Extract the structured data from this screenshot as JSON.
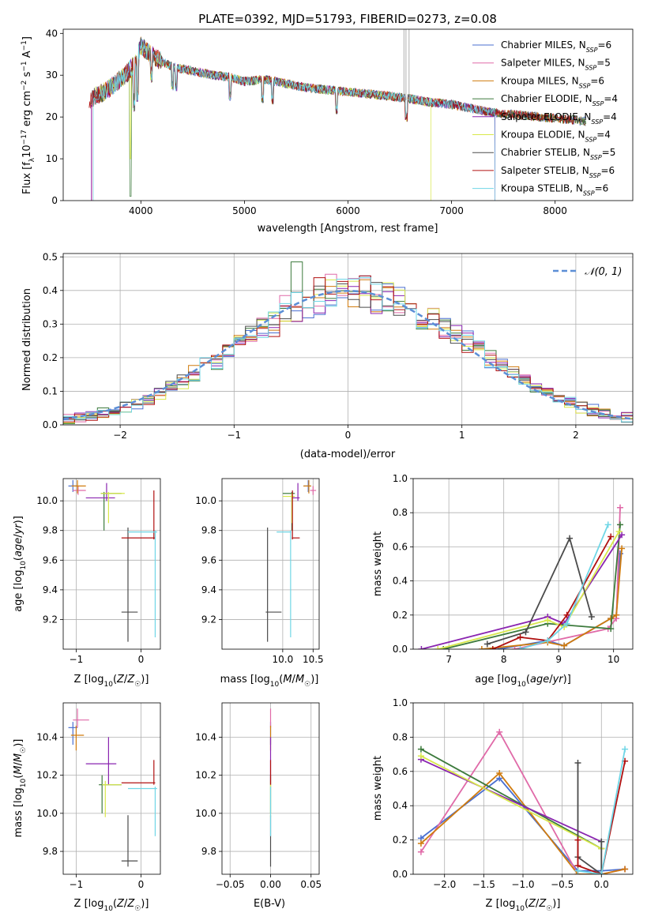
{
  "figure": {
    "title": "PLATE=0392, MJD=51793, FIBERID=0273, z=0.08",
    "colors": [
      "#4a6fd0",
      "#e06aa8",
      "#d07b0e",
      "#3c7a3c",
      "#8a25b0",
      "#d8e84a",
      "#4b4b4b",
      "#b01010",
      "#6fd6e6"
    ],
    "model_names": [
      "Chabrier MILES",
      "Salpeter MILES",
      "Kroupa MILES",
      "Chabrier ELODIE",
      "Salpeter ELODIE",
      "Kroupa ELODIE",
      "Chabrier STELIB",
      "Salpeter STELIB",
      "Kroupa STELIB"
    ],
    "nssp": [
      6,
      5,
      6,
      4,
      4,
      4,
      5,
      6,
      6
    ]
  },
  "chart_data": [
    {
      "id": "spectrum",
      "type": "line",
      "xlabel": "wavelength [Angstrom, rest frame]",
      "ylabel_parts": [
        "Flux [f",
        "λ",
        "10",
        "−17",
        " erg cm",
        "−2",
        " s",
        "−1",
        " A",
        "−1",
        "]"
      ],
      "xlim": [
        3250,
        8750
      ],
      "ylim": [
        0,
        41
      ],
      "xticks": [
        4000,
        5000,
        6000,
        7000,
        8000
      ],
      "yticks": [
        0,
        10,
        20,
        30,
        40
      ],
      "continuum": {
        "x": [
          3500,
          3550,
          3650,
          3750,
          3850,
          3950,
          4000,
          4050,
          4150,
          4300,
          4500,
          4700,
          4860,
          5000,
          5200,
          5400,
          5600,
          5800,
          6000,
          6200,
          6400,
          6560,
          6800,
          7000,
          7200,
          7400,
          7420
        ],
        "y": [
          23,
          25,
          26,
          28,
          30,
          33,
          37,
          36,
          34,
          32,
          31,
          30,
          29.5,
          28.5,
          29,
          28,
          27,
          26.5,
          26,
          25.5,
          25,
          24.5,
          23.5,
          23,
          22,
          21,
          21
        ]
      },
      "legend_labels": [
        "Chabrier MILES, N",
        "Salpeter MILES, N",
        "Kroupa MILES, N",
        "Chabrier ELODIE, N",
        "Salpeter ELODIE, N",
        "Kroupa ELODIE, N",
        "Chabrier STELIB, N",
        "Salpeter STELIB, N",
        "Kroupa STELIB, N"
      ],
      "legend_sub": "SSP",
      "legend_location": "upper-right",
      "grid": false
    },
    {
      "id": "residuals",
      "type": "step-histogram",
      "xlabel": "(data-model)/error",
      "ylabel": "Normed distribution",
      "xlim": [
        -2.5,
        2.5
      ],
      "ylim": [
        0,
        0.51
      ],
      "xticks": [
        -2,
        -1,
        0,
        1,
        2
      ],
      "yticks": [
        0.0,
        0.1,
        0.2,
        0.3,
        0.4,
        0.5
      ],
      "bin_width": 0.1,
      "bin_start": -2.5,
      "gaussian_label": "𝒩(0, 1)",
      "gaussian_color": "#5b8ed6",
      "legend_location": "upper-right",
      "grid": true
    },
    {
      "id": "age-vs-Z",
      "type": "errorbar",
      "xlabel": "Z [log10(Z/Z☉)]",
      "ylabel": "age  [log10(age/yr)]",
      "xlim": [
        -1.2,
        0.3
      ],
      "ylim": [
        9.0,
        10.15
      ],
      "xticks": [
        -1,
        0
      ],
      "yticks": [
        9.2,
        9.4,
        9.6,
        9.8,
        10.0
      ],
      "points": [
        {
          "x": -1.05,
          "xlo": -1.12,
          "xhi": -0.98,
          "y": 10.1,
          "ylo": 10.06,
          "yhi": 10.14
        },
        {
          "x": -0.97,
          "xlo": -1.05,
          "xhi": -0.85,
          "y": 10.07,
          "ylo": 10.04,
          "yhi": 10.1
        },
        {
          "x": -0.98,
          "xlo": -1.07,
          "xhi": -0.85,
          "y": 10.1,
          "ylo": 10.05,
          "yhi": 10.14
        },
        {
          "x": -0.57,
          "xlo": -0.62,
          "xhi": -0.3,
          "y": 10.05,
          "ylo": 9.8,
          "yhi": 10.06
        },
        {
          "x": -0.53,
          "xlo": -0.85,
          "xhi": -0.4,
          "y": 10.02,
          "ylo": 10.0,
          "yhi": 10.12
        },
        {
          "x": -0.5,
          "xlo": -0.62,
          "xhi": -0.25,
          "y": 10.05,
          "ylo": 9.85,
          "yhi": 10.06
        },
        {
          "x": -0.2,
          "xlo": -0.3,
          "xhi": -0.05,
          "y": 9.25,
          "ylo": 9.05,
          "yhi": 9.82
        },
        {
          "x": 0.2,
          "xlo": -0.3,
          "xhi": 0.22,
          "y": 9.75,
          "ylo": 9.74,
          "yhi": 10.07
        },
        {
          "x": 0.22,
          "xlo": -0.2,
          "xhi": 0.25,
          "y": 9.79,
          "ylo": 9.08,
          "yhi": 9.8
        }
      ],
      "grid": true
    },
    {
      "id": "age-vs-mass",
      "type": "errorbar",
      "xlabel": "mass [log10(M/M☉)]",
      "ylabel": "",
      "xlim": [
        9.0,
        10.6
      ],
      "ylim": [
        9.0,
        10.15
      ],
      "xticks": [
        10.0,
        10.5
      ],
      "yticks": [
        9.2,
        9.4,
        9.6,
        9.8,
        10.0
      ],
      "points": [
        {
          "x": 10.42,
          "xlo": 10.35,
          "xhi": 10.46,
          "y": 10.1,
          "ylo": 10.06,
          "yhi": 10.14
        },
        {
          "x": 10.5,
          "xlo": 10.45,
          "xhi": 10.55,
          "y": 10.07,
          "ylo": 10.04,
          "yhi": 10.1
        },
        {
          "x": 10.43,
          "xlo": 10.34,
          "xhi": 10.47,
          "y": 10.1,
          "ylo": 10.05,
          "yhi": 10.14
        },
        {
          "x": 10.15,
          "xlo": 10.0,
          "xhi": 10.2,
          "y": 10.05,
          "ylo": 9.8,
          "yhi": 10.06
        },
        {
          "x": 10.25,
          "xlo": 10.15,
          "xhi": 10.28,
          "y": 10.02,
          "ylo": 10.0,
          "yhi": 10.12
        },
        {
          "x": 10.15,
          "xlo": 10.0,
          "xhi": 10.2,
          "y": 10.03,
          "ylo": 9.85,
          "yhi": 10.05
        },
        {
          "x": 9.75,
          "xlo": 9.72,
          "xhi": 9.98,
          "y": 9.25,
          "ylo": 9.05,
          "yhi": 9.82
        },
        {
          "x": 10.16,
          "xlo": 10.15,
          "xhi": 10.28,
          "y": 9.75,
          "ylo": 9.74,
          "yhi": 10.07
        },
        {
          "x": 10.13,
          "xlo": 9.9,
          "xhi": 10.14,
          "y": 9.79,
          "ylo": 9.08,
          "yhi": 9.8
        }
      ],
      "grid": true
    },
    {
      "id": "weight-vs-age",
      "type": "line",
      "xlabel": "age  [log10(age/yr)]",
      "ylabel": "mass weight",
      "xlim": [
        6.35,
        10.35
      ],
      "ylim": [
        0,
        1.0
      ],
      "xticks": [
        7,
        8,
        9,
        10
      ],
      "yticks": [
        0.0,
        0.2,
        0.4,
        0.6,
        0.8,
        1.0
      ],
      "series": [
        {
          "x": [
            7.9,
            8.8,
            9.1,
            9.95,
            10.05,
            10.12
          ],
          "y": [
            0.0,
            0.05,
            0.02,
            0.18,
            0.2,
            0.56
          ]
        },
        {
          "x": [
            8.2,
            9.9,
            10.05,
            10.12
          ],
          "y": [
            0.0,
            0.12,
            0.18,
            0.83
          ]
        },
        {
          "x": [
            7.6,
            8.8,
            9.1,
            9.95,
            10.05,
            10.15
          ],
          "y": [
            0.0,
            0.04,
            0.02,
            0.18,
            0.2,
            0.59
          ]
        },
        {
          "x": [
            6.9,
            8.8,
            9.95,
            10.12
          ],
          "y": [
            0.0,
            0.15,
            0.12,
            0.73
          ]
        },
        {
          "x": [
            6.5,
            8.8,
            9.1,
            10.15
          ],
          "y": [
            0.0,
            0.19,
            0.15,
            0.67
          ]
        },
        {
          "x": [
            6.8,
            8.8,
            9.1,
            10.1
          ],
          "y": [
            0.0,
            0.17,
            0.13,
            0.69
          ]
        },
        {
          "x": [
            7.7,
            8.4,
            9.2,
            9.6
          ],
          "y": [
            0.03,
            0.1,
            0.65,
            0.19
          ]
        },
        {
          "x": [
            7.8,
            8.3,
            8.8,
            9.15,
            9.95
          ],
          "y": [
            0.0,
            0.07,
            0.05,
            0.2,
            0.66
          ]
        },
        {
          "x": [
            8.3,
            8.8,
            9.15,
            9.9
          ],
          "y": [
            0.0,
            0.05,
            0.15,
            0.73
          ]
        }
      ],
      "grid": true
    },
    {
      "id": "mass-vs-Z",
      "type": "errorbar",
      "xlabel": "Z [log10(Z/Z☉)]",
      "ylabel": "mass [log10(M/M☉)]",
      "xlim": [
        -1.2,
        0.3
      ],
      "ylim": [
        9.68,
        10.58
      ],
      "xticks": [
        -1,
        0
      ],
      "yticks": [
        9.8,
        10.0,
        10.2,
        10.4
      ],
      "points": [
        {
          "x": -1.05,
          "xlo": -1.12,
          "xhi": -0.98,
          "y": 10.45,
          "ylo": 10.36,
          "yhi": 10.48
        },
        {
          "x": -0.98,
          "xlo": -1.05,
          "xhi": -0.8,
          "y": 10.49,
          "ylo": 10.45,
          "yhi": 10.55
        },
        {
          "x": -1.0,
          "xlo": -1.08,
          "xhi": -0.88,
          "y": 10.41,
          "ylo": 10.33,
          "yhi": 10.46
        },
        {
          "x": -0.6,
          "xlo": -0.65,
          "xhi": -0.3,
          "y": 10.15,
          "ylo": 10.0,
          "yhi": 10.2
        },
        {
          "x": -0.5,
          "xlo": -0.85,
          "xhi": -0.38,
          "y": 10.26,
          "ylo": 10.15,
          "yhi": 10.4
        },
        {
          "x": -0.55,
          "xlo": -0.6,
          "xhi": -0.3,
          "y": 10.15,
          "ylo": 9.98,
          "yhi": 10.17
        },
        {
          "x": -0.2,
          "xlo": -0.3,
          "xhi": -0.05,
          "y": 9.75,
          "ylo": 9.72,
          "yhi": 9.99
        },
        {
          "x": 0.2,
          "xlo": -0.3,
          "xhi": 0.22,
          "y": 10.16,
          "ylo": 10.15,
          "yhi": 10.28
        },
        {
          "x": 0.22,
          "xlo": -0.2,
          "xhi": 0.25,
          "y": 10.13,
          "ylo": 9.88,
          "yhi": 10.14
        }
      ],
      "grid": true
    },
    {
      "id": "mass-vs-EBV",
      "type": "errorbar",
      "xlabel": "E(B-V)",
      "ylabel": "",
      "xlim": [
        -0.06,
        0.06
      ],
      "ylim": [
        9.68,
        10.58
      ],
      "xticks": [
        -0.05,
        0.0,
        0.05
      ],
      "xtick_labels": [
        "−0.05",
        "0.00",
        "0.05"
      ],
      "yticks": [
        9.8,
        10.0,
        10.2,
        10.4
      ],
      "points": [
        {
          "x": 0.0,
          "xlo": 0.0,
          "xhi": 0.0,
          "y": 10.45,
          "ylo": 10.36,
          "yhi": 10.48
        },
        {
          "x": 0.0,
          "xlo": 0.0,
          "xhi": 0.0,
          "y": 10.49,
          "ylo": 10.45,
          "yhi": 10.55
        },
        {
          "x": 0.0,
          "xlo": 0.0,
          "xhi": 0.0,
          "y": 10.41,
          "ylo": 10.33,
          "yhi": 10.46
        },
        {
          "x": 0.0,
          "xlo": 0.0,
          "xhi": 0.0,
          "y": 10.15,
          "ylo": 10.0,
          "yhi": 10.2
        },
        {
          "x": 0.0,
          "xlo": 0.0,
          "xhi": 0.0,
          "y": 10.26,
          "ylo": 10.15,
          "yhi": 10.4
        },
        {
          "x": 0.0,
          "xlo": 0.0,
          "xhi": 0.0,
          "y": 10.15,
          "ylo": 9.98,
          "yhi": 10.17
        },
        {
          "x": 0.0,
          "xlo": 0.0,
          "xhi": 0.0,
          "y": 9.75,
          "ylo": 9.72,
          "yhi": 9.99
        },
        {
          "x": 0.0,
          "xlo": 0.0,
          "xhi": 0.0,
          "y": 10.16,
          "ylo": 10.15,
          "yhi": 10.28
        },
        {
          "x": 0.0,
          "xlo": 0.0,
          "xhi": 0.0,
          "y": 10.13,
          "ylo": 9.88,
          "yhi": 10.14
        }
      ],
      "grid": true
    },
    {
      "id": "weight-vs-Z",
      "type": "line",
      "xlabel": "Z [log10(Z/Z☉)]",
      "ylabel": "mass weight",
      "xlim": [
        -2.4,
        0.4
      ],
      "ylim": [
        0,
        1.0
      ],
      "xticks": [
        -2.0,
        -1.5,
        -1.0,
        -0.5,
        0.0
      ],
      "xtick_labels": [
        "−2.0",
        "−1.5",
        "−1.0",
        "−0.5",
        "0.0"
      ],
      "yticks": [
        0.0,
        0.2,
        0.4,
        0.6,
        0.8,
        1.0
      ],
      "series": [
        {
          "x": [
            -2.3,
            -1.3,
            -0.3,
            0.0,
            0.3
          ],
          "y": [
            0.21,
            0.56,
            0.02,
            0.02,
            0.03
          ]
        },
        {
          "x": [
            -2.3,
            -1.3,
            -0.3,
            0.0,
            0.3
          ],
          "y": [
            0.13,
            0.83,
            0.0,
            0.0,
            0.03
          ]
        },
        {
          "x": [
            -2.3,
            -1.3,
            -0.3,
            0.0,
            0.3
          ],
          "y": [
            0.18,
            0.59,
            0.0,
            0.0,
            0.03
          ]
        },
        {
          "x": [
            -2.3,
            0.0
          ],
          "y": [
            0.73,
            0.15
          ]
        },
        {
          "x": [
            -2.3,
            0.0
          ],
          "y": [
            0.67,
            0.19
          ]
        },
        {
          "x": [
            -2.3,
            0.0
          ],
          "y": [
            0.69,
            0.15
          ]
        },
        {
          "x": [
            -0.3,
            -0.3,
            0.0,
            0.0
          ],
          "y": [
            0.65,
            0.1,
            0.0,
            0.19
          ]
        },
        {
          "x": [
            -0.3,
            -0.3,
            0.0,
            0.3
          ],
          "y": [
            0.2,
            0.05,
            0.0,
            0.66
          ]
        },
        {
          "x": [
            -0.3,
            0.0,
            0.3
          ],
          "y": [
            0.02,
            0.0,
            0.73
          ]
        }
      ],
      "grid": true
    }
  ]
}
